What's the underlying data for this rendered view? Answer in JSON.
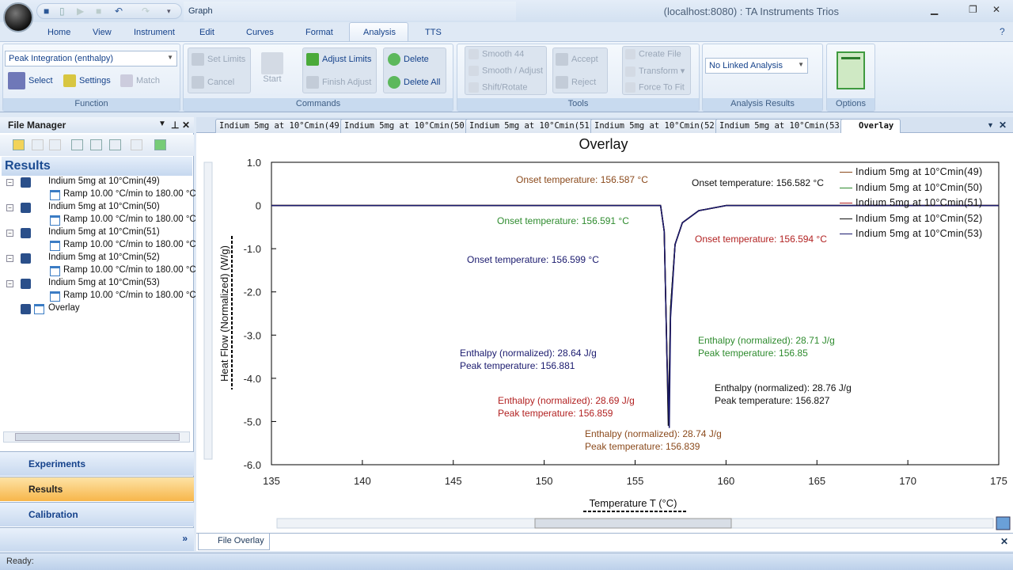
{
  "window": {
    "title": "(localhost:8080) : TA Instruments Trios",
    "context_tab": "Graph"
  },
  "menu_tabs": [
    "Home",
    "View",
    "Instrument",
    "Edit",
    "Curves",
    "Format",
    "Analysis",
    "TTS"
  ],
  "active_tab": "Analysis",
  "ribbon": {
    "function": {
      "label": "Function",
      "combo": "Peak Integration (enthalpy)",
      "select": "Select",
      "settings": "Settings",
      "match": "Match"
    },
    "commands": {
      "label": "Commands",
      "set_limits": "Set Limits",
      "cancel": "Cancel",
      "start": "Start",
      "adjust_limits": "Adjust Limits",
      "finish_adjust": "Finish Adjust",
      "delete": "Delete",
      "delete_all": "Delete All"
    },
    "tools": {
      "label": "Tools",
      "smooth44": "Smooth 44",
      "smooth_adjust": "Smooth / Adjust",
      "shift_rotate": "Shift/Rotate",
      "accept": "Accept",
      "reject": "Reject",
      "create_file": "Create File",
      "transform": "Transform",
      "force_to_fit": "Force To Fit"
    },
    "analysis_results": {
      "label": "Analysis Results",
      "combo": "No Linked Analysis"
    },
    "options": {
      "label": "Options"
    }
  },
  "file_manager": {
    "title": "File Manager",
    "section": "Results",
    "items": [
      {
        "name": "Indium 5mg at 10°Cmin(49)",
        "child": "Ramp 10.00 °C/min to 180.00 °C"
      },
      {
        "name": "Indium 5mg at 10°Cmin(50)",
        "child": "Ramp 10.00 °C/min to 180.00 °C"
      },
      {
        "name": "Indium 5mg at 10°Cmin(51)",
        "child": "Ramp 10.00 °C/min to 180.00 °C"
      },
      {
        "name": "Indium 5mg at 10°Cmin(52)",
        "child": "Ramp 10.00 °C/min to 180.00 °C"
      },
      {
        "name": "Indium 5mg at 10°Cmin(53)",
        "child": "Ramp 10.00 °C/min to 180.00 °C"
      }
    ],
    "overlay": "Overlay",
    "nav": [
      "Experiments",
      "Results",
      "Calibration"
    ]
  },
  "doc_tabs": [
    "Indium 5mg at 10°Cmin(49)",
    "Indium 5mg at 10°Cmin(50)",
    "Indium 5mg at 10°Cmin(51)",
    "Indium 5mg at 10°Cmin(52)",
    "Indium 5mg at 10°Cmin(53)",
    "Overlay"
  ],
  "bottom_tab": "File Overlay",
  "status": "Ready:",
  "chart_data": {
    "type": "line",
    "title": "Overlay",
    "xlabel": "Temperature  T (°C)",
    "ylabel": "Heat Flow (Normalized)  (W/g)",
    "xlim": [
      135,
      175
    ],
    "ylim": [
      -6,
      1
    ],
    "xticks": [
      "135",
      "140",
      "145",
      "150",
      "155",
      "160",
      "165",
      "170",
      "175"
    ],
    "yticks": [
      "1.0",
      "0",
      "-1.0",
      "-2.0",
      "-3.0",
      "-4.0",
      "-5.0",
      "-6.0"
    ],
    "legend": "top-right",
    "series": [
      {
        "name": "Indium  5mg  at  10°Cmin(49)",
        "color": "#8b4a1c",
        "x": [
          135,
          156.4,
          156.6,
          156.75,
          156.84,
          156.95,
          157.2,
          157.6,
          158.5,
          160,
          175
        ],
        "y": [
          0,
          0,
          -0.6,
          -3.5,
          -5.05,
          -2.4,
          -0.9,
          -0.4,
          -0.12,
          0,
          0
        ]
      },
      {
        "name": "Indium  5mg  at  10°Cmin(50)",
        "color": "#2e8b2e",
        "x": [
          135,
          156.4,
          156.6,
          156.75,
          156.85,
          156.95,
          157.2,
          157.6,
          158.5,
          160,
          175
        ],
        "y": [
          0,
          0,
          -0.6,
          -3.4,
          -5.0,
          -2.4,
          -0.9,
          -0.4,
          -0.12,
          0,
          0
        ]
      },
      {
        "name": "Indium  5mg  at  10°Cmin(51)",
        "color": "#b22222",
        "x": [
          135,
          156.4,
          156.6,
          156.75,
          156.86,
          156.95,
          157.2,
          157.6,
          158.5,
          160,
          175
        ],
        "y": [
          0,
          0,
          -0.6,
          -3.4,
          -5.05,
          -2.5,
          -0.9,
          -0.4,
          -0.12,
          0,
          0
        ]
      },
      {
        "name": "Indium  5mg  at  10°Cmin(52)",
        "color": "#111111",
        "x": [
          135,
          156.4,
          156.6,
          156.75,
          156.83,
          156.95,
          157.2,
          157.6,
          158.5,
          160,
          175
        ],
        "y": [
          0,
          0,
          -0.6,
          -3.5,
          -5.1,
          -2.4,
          -0.9,
          -0.4,
          -0.12,
          0,
          0
        ]
      },
      {
        "name": "Indium  5mg  at  10°Cmin(53)",
        "color": "#1a1a6e",
        "x": [
          135,
          156.4,
          156.6,
          156.75,
          156.88,
          156.95,
          157.2,
          157.6,
          158.5,
          160,
          175
        ],
        "y": [
          0,
          0,
          -0.6,
          -3.5,
          -5.15,
          -2.6,
          -0.9,
          -0.4,
          -0.12,
          0,
          0
        ]
      }
    ],
    "annotations": {
      "onset": [
        "Onset temperature: 156.587 °C",
        "Onset temperature: 156.582 °C",
        "Onset temperature: 156.591 °C",
        "Onset temperature: 156.594 °C",
        "Onset temperature: 156.599 °C"
      ],
      "enthalpy": [
        {
          "e": "Enthalpy (normalized): 28.64 J/g",
          "p": "Peak temperature: 156.881"
        },
        {
          "e": "Enthalpy (normalized): 28.71 J/g",
          "p": "Peak temperature: 156.85"
        },
        {
          "e": "Enthalpy (normalized): 28.76 J/g",
          "p": "Peak temperature: 156.827"
        },
        {
          "e": "Enthalpy (normalized): 28.69 J/g",
          "p": "Peak temperature: 156.859"
        },
        {
          "e": "Enthalpy (normalized): 28.74 J/g",
          "p": "Peak temperature: 156.839"
        }
      ]
    }
  }
}
